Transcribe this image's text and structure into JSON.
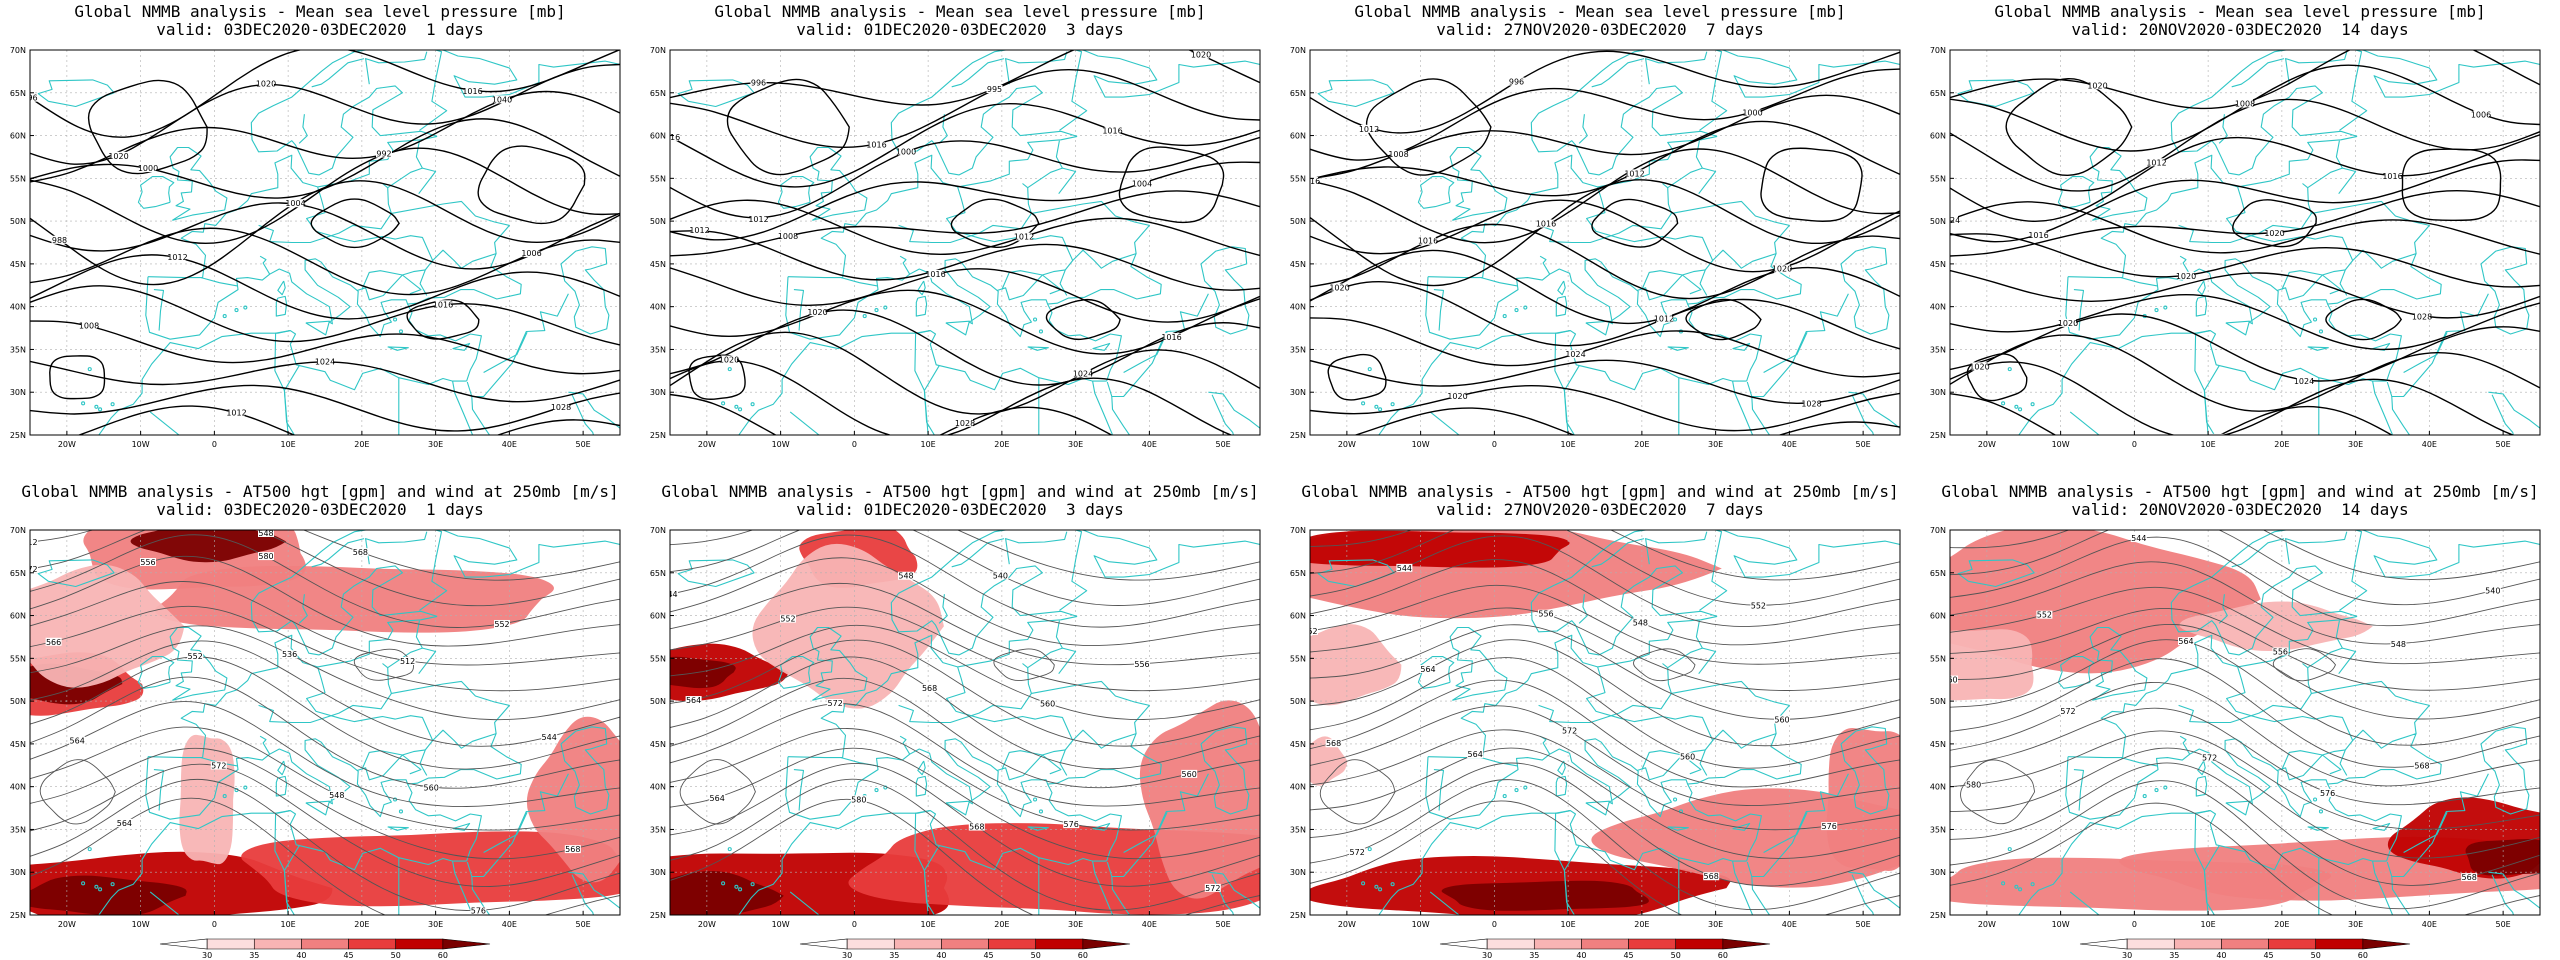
{
  "rows": [
    {
      "title_line1": "Global NMMB analysis - Mean sea level pressure [mb]",
      "panels": [
        {
          "valid": "valid: 03DEC2020-03DEC2020  1 days",
          "labels": [
            "996",
            "1020",
            "1040",
            "1000",
            "992",
            "988",
            "1004",
            "1006",
            "1012",
            "1016",
            "1008",
            "1024",
            "1028",
            "1012",
            "1016",
            "1020"
          ]
        },
        {
          "valid": "valid: 01DEC2020-03DEC2020  3 days",
          "labels": [
            "996",
            "995",
            "1016",
            "1000",
            "1004",
            "1008",
            "1012",
            "1012",
            "1016",
            "1016",
            "1020",
            "1024",
            "1020",
            "1028",
            "1020",
            "1016",
            "1016",
            "1012"
          ]
        },
        {
          "valid": "valid: 27NOV2020-03DEC2020  7 days",
          "labels": [
            "996",
            "1000",
            "1008",
            "1012",
            "1016",
            "1016",
            "1020",
            "1016",
            "1012",
            "1020",
            "1024",
            "1028",
            "1020",
            "1016",
            "1012"
          ]
        },
        {
          "valid": "valid: 20NOV2020-03DEC2020  14 days",
          "labels": [
            "1008",
            "1006",
            "1012",
            "1016",
            "1016",
            "1020",
            "1024",
            "1020",
            "1028",
            "1020",
            "1024",
            "1020",
            "1016",
            "1016",
            "1020"
          ]
        }
      ]
    },
    {
      "title_line1": "Global NMMB analysis - AT500 hgt [gpm] and wind at 250mb [m/s]",
      "panels": [
        {
          "valid": "valid: 03DEC2020-03DEC2020  1 days",
          "labels": [
            "512",
            "548",
            "552",
            "556",
            "512",
            "566",
            "536",
            "544",
            "552",
            "560",
            "564",
            "548",
            "568",
            "572",
            "576",
            "564",
            "568",
            "572",
            "580"
          ]
        },
        {
          "valid": "valid: 01DEC2020-03DEC2020  3 days",
          "labels": [
            "516",
            "540",
            "544",
            "548",
            "556",
            "552",
            "560",
            "564",
            "568",
            "560",
            "572",
            "576",
            "564",
            "568",
            "572",
            "580"
          ]
        },
        {
          "valid": "valid: 27NOV2020-03DEC2020  7 days",
          "labels": [
            "548",
            "552",
            "544",
            "548",
            "552",
            "556",
            "560",
            "564",
            "560",
            "568",
            "572",
            "576",
            "564",
            "568",
            "572"
          ]
        },
        {
          "valid": "valid: 20NOV2020-03DEC2020  14 days",
          "labels": [
            "536",
            "540",
            "544",
            "548",
            "552",
            "556",
            "560",
            "564",
            "568",
            "572",
            "576",
            "580",
            "572",
            "568"
          ]
        }
      ]
    }
  ],
  "axes": {
    "lat_labels": [
      "70N",
      "65N",
      "60N",
      "55N",
      "50N",
      "45N",
      "40N",
      "35N",
      "30N",
      "25N"
    ],
    "lon_labels": [
      "20W",
      "10W",
      "0",
      "10E",
      "20E",
      "30E",
      "40E",
      "50E"
    ]
  },
  "colorbar": {
    "ticks": [
      "30",
      "35",
      "40",
      "45",
      "50",
      "60"
    ],
    "colors": [
      "#ffffff",
      "#fcdede",
      "#f8b4b4",
      "#f08080",
      "#e83c3c",
      "#c00000",
      "#7a0000"
    ]
  },
  "colors": {
    "coast": "#2fc6c6",
    "contour": "#000000",
    "hgt_contour": "#555555",
    "grid": "#b0b0b0"
  }
}
